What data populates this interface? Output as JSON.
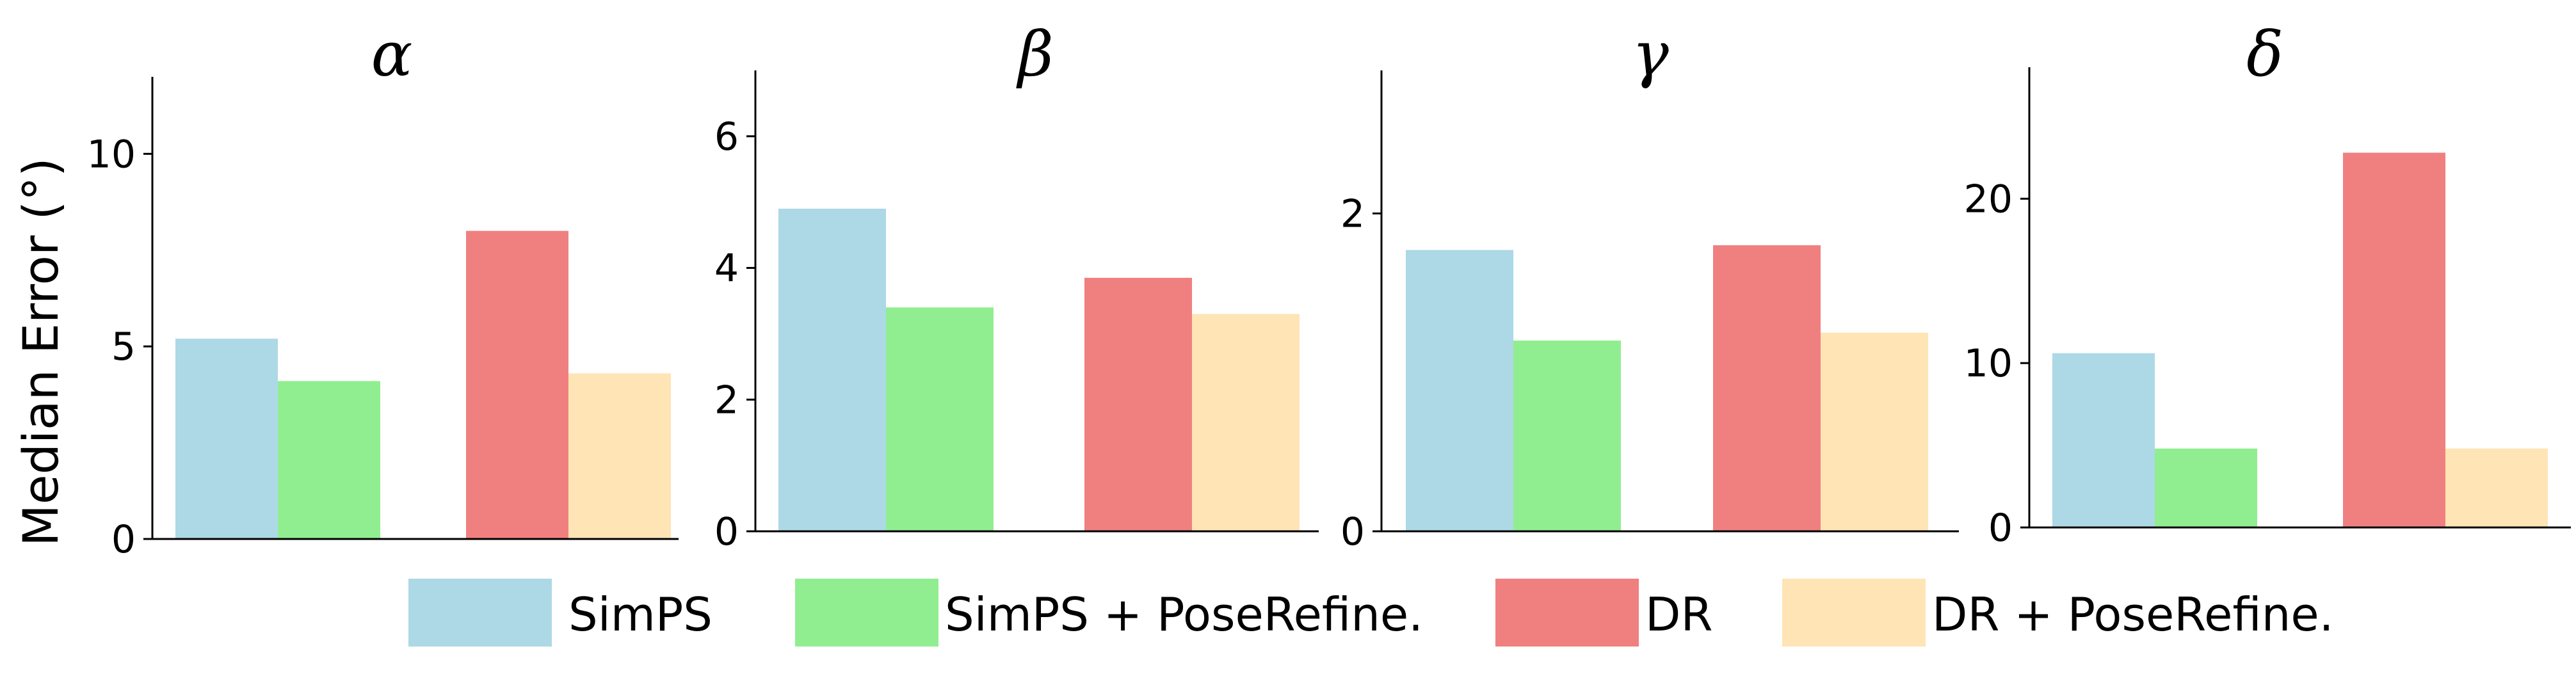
{
  "chart_data": {
    "type": "bar",
    "ylabel": "Median Error (°)",
    "colors": {
      "SimPS": "#add8e6",
      "SimPS + PoseRefine.": "#90ee90",
      "DR": "#f08080",
      "DR + PoseRefine.": "#ffe4b5"
    },
    "legend": {
      "placement": "bottom-center",
      "entries": [
        "SimPS",
        "SimPS + PoseRefine.",
        "DR",
        "DR + PoseRefine."
      ]
    },
    "grid": false,
    "panels": [
      {
        "title": "α",
        "ylim": [
          0,
          12
        ],
        "yticks": [
          0,
          5,
          10
        ],
        "series": [
          {
            "name": "SimPS",
            "value": 5.2
          },
          {
            "name": "SimPS + PoseRefine.",
            "value": 4.1
          },
          {
            "name": "DR",
            "value": 8.0
          },
          {
            "name": "DR + PoseRefine.",
            "value": 4.3
          }
        ]
      },
      {
        "title": "β",
        "ylim": [
          0,
          7
        ],
        "yticks": [
          0,
          2,
          4,
          6
        ],
        "series": [
          {
            "name": "SimPS",
            "value": 4.9
          },
          {
            "name": "SimPS + PoseRefine.",
            "value": 3.4
          },
          {
            "name": "DR",
            "value": 3.85
          },
          {
            "name": "DR + PoseRefine.",
            "value": 3.3
          }
        ]
      },
      {
        "title": "γ",
        "ylim": [
          0,
          2.9
        ],
        "yticks": [
          0,
          2
        ],
        "series": [
          {
            "name": "SimPS",
            "value": 1.77
          },
          {
            "name": "SimPS + PoseRefine.",
            "value": 1.2
          },
          {
            "name": "DR",
            "value": 1.8
          },
          {
            "name": "DR + PoseRefine.",
            "value": 1.25
          }
        ]
      },
      {
        "title": "δ",
        "ylim": [
          0,
          28
        ],
        "yticks": [
          0,
          10,
          20
        ],
        "series": [
          {
            "name": "SimPS",
            "value": 10.6
          },
          {
            "name": "SimPS + PoseRefine.",
            "value": 4.8
          },
          {
            "name": "DR",
            "value": 22.8
          },
          {
            "name": "DR + PoseRefine.",
            "value": 4.8
          }
        ]
      }
    ]
  }
}
